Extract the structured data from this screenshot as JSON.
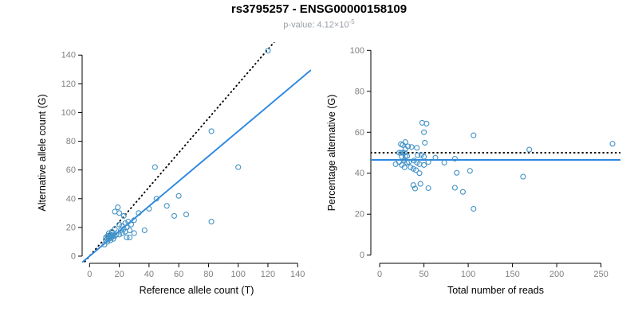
{
  "header": {
    "title": "rs3795257 - ENSG00000158109",
    "subtitle_prefix": "p-value: 4.12×10",
    "subtitle_exponent": "-5"
  },
  "colors": {
    "points": "#4292c6",
    "fit_line": "#2b87e0",
    "reference_line": "#000000",
    "axis": "#000000",
    "tick_label": "#808080",
    "axis_label": "#000000",
    "title": "#000000",
    "subtitle": "#9aa0a6"
  },
  "chart_data": [
    {
      "type": "scatter",
      "name": "allele-counts-scatter",
      "xlabel": "Reference allele count (T)",
      "ylabel": "Alternative allele count (G)",
      "xlim": [
        -5,
        149
      ],
      "ylim": [
        -5,
        149
      ],
      "xticks": [
        0,
        20,
        40,
        60,
        80,
        100,
        120,
        140
      ],
      "yticks": [
        0,
        20,
        40,
        60,
        80,
        100,
        120,
        140
      ],
      "grid": false,
      "legend": "none",
      "lines": [
        {
          "name": "expected-line",
          "style": "dotted",
          "slope": 1.2,
          "intercept": 0,
          "color": "#000000"
        },
        {
          "name": "fitted-line",
          "style": "solid",
          "slope": 0.87,
          "intercept": 0,
          "color": "#2b87e0"
        }
      ],
      "points": [
        [
          10,
          8
        ],
        [
          11,
          11
        ],
        [
          11,
          13
        ],
        [
          12,
          10
        ],
        [
          12,
          14
        ],
        [
          13,
          12
        ],
        [
          13,
          16
        ],
        [
          14,
          11
        ],
        [
          14,
          14
        ],
        [
          15,
          13
        ],
        [
          15,
          17
        ],
        [
          16,
          12
        ],
        [
          16,
          15
        ],
        [
          17,
          14
        ],
        [
          17,
          19
        ],
        [
          18,
          15
        ],
        [
          13,
          13
        ],
        [
          12,
          12
        ],
        [
          14,
          15
        ],
        [
          15,
          14
        ],
        [
          20,
          15
        ],
        [
          20,
          22
        ],
        [
          21,
          18
        ],
        [
          22,
          16
        ],
        [
          22,
          21
        ],
        [
          23,
          19
        ],
        [
          24,
          17
        ],
        [
          24,
          23
        ],
        [
          25,
          20
        ],
        [
          26,
          24
        ],
        [
          27,
          18
        ],
        [
          28,
          22
        ],
        [
          30,
          25
        ],
        [
          20,
          30
        ],
        [
          23,
          28
        ],
        [
          33,
          30
        ],
        [
          25,
          13
        ],
        [
          30,
          16
        ],
        [
          19,
          34
        ],
        [
          17,
          31
        ],
        [
          27,
          13
        ],
        [
          37,
          18
        ],
        [
          40,
          33
        ],
        [
          45,
          40
        ],
        [
          44,
          62
        ],
        [
          52,
          35
        ],
        [
          57,
          28
        ],
        [
          60,
          42
        ],
        [
          65,
          29
        ],
        [
          82,
          87
        ],
        [
          82,
          24
        ],
        [
          100,
          62
        ],
        [
          120,
          143
        ]
      ]
    },
    {
      "type": "scatter",
      "name": "percentage-vs-coverage-scatter",
      "xlabel": "Total number of reads",
      "ylabel": "Percentage alternative (G)",
      "xlim": [
        -10,
        272
      ],
      "ylim": [
        -4,
        104
      ],
      "xticks": [
        0,
        50,
        100,
        150,
        200,
        250
      ],
      "yticks": [
        0,
        20,
        40,
        60,
        80,
        100
      ],
      "grid": false,
      "legend": "none",
      "lines": [
        {
          "name": "expected-50-percent-line",
          "style": "dotted",
          "y": 50,
          "color": "#000000"
        },
        {
          "name": "fitted-percentage-line",
          "style": "solid",
          "y": 46.5,
          "color": "#2b87e0"
        }
      ],
      "points": [
        [
          18,
          44.4
        ],
        [
          22,
          50.0
        ],
        [
          24,
          54.2
        ],
        [
          22,
          45.5
        ],
        [
          26,
          53.8
        ],
        [
          25,
          48.0
        ],
        [
          29,
          55.2
        ],
        [
          25,
          44.0
        ],
        [
          28,
          50.0
        ],
        [
          28,
          46.4
        ],
        [
          32,
          53.1
        ],
        [
          28,
          42.9
        ],
        [
          31,
          48.4
        ],
        [
          31,
          45.2
        ],
        [
          36,
          52.8
        ],
        [
          33,
          45.5
        ],
        [
          26,
          50.0
        ],
        [
          24,
          50.0
        ],
        [
          29,
          51.7
        ],
        [
          29,
          48.3
        ],
        [
          35,
          42.9
        ],
        [
          42,
          52.4
        ],
        [
          39,
          46.2
        ],
        [
          38,
          42.1
        ],
        [
          43,
          48.8
        ],
        [
          42,
          45.2
        ],
        [
          41,
          41.5
        ],
        [
          47,
          48.9
        ],
        [
          45,
          44.4
        ],
        [
          50,
          48.0
        ],
        [
          45,
          40.0
        ],
        [
          50,
          44.0
        ],
        [
          55,
          45.5
        ],
        [
          50,
          60.0
        ],
        [
          51,
          54.9
        ],
        [
          63,
          47.6
        ],
        [
          38,
          34.2
        ],
        [
          46,
          34.8
        ],
        [
          53,
          64.2
        ],
        [
          48,
          64.6
        ],
        [
          40,
          32.5
        ],
        [
          55,
          32.7
        ],
        [
          73,
          45.2
        ],
        [
          85,
          47.1
        ],
        [
          106,
          58.5
        ],
        [
          87,
          40.2
        ],
        [
          85,
          32.9
        ],
        [
          102,
          41.2
        ],
        [
          94,
          30.9
        ],
        [
          169,
          51.5
        ],
        [
          106,
          22.6
        ],
        [
          162,
          38.3
        ],
        [
          263,
          54.4
        ]
      ]
    }
  ]
}
